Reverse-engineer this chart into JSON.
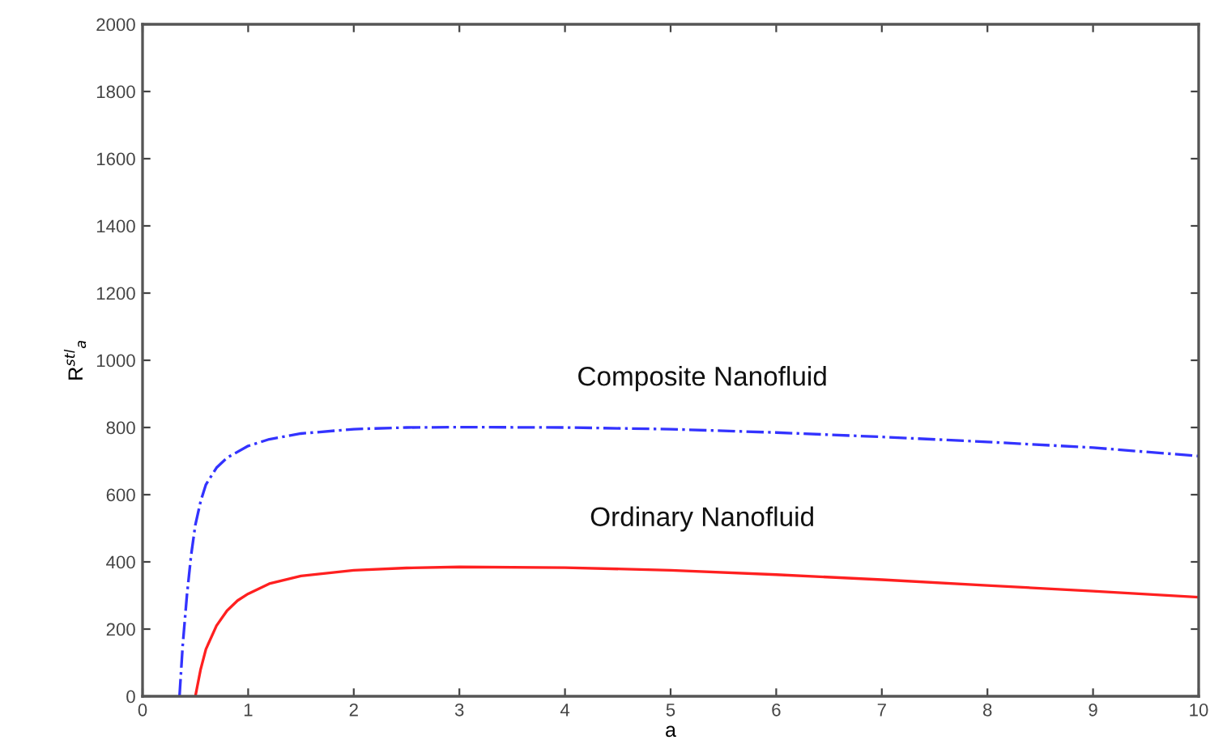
{
  "chart_data": {
    "type": "line",
    "xlabel": "a",
    "ylabel": "R$^{stl}$$_{a}$",
    "xlim": [
      0,
      10
    ],
    "ylim": [
      0,
      2000
    ],
    "xticks": [
      0,
      1,
      2,
      3,
      4,
      5,
      6,
      7,
      8,
      9,
      10
    ],
    "yticks": [
      0,
      200,
      400,
      600,
      800,
      1000,
      1200,
      1400,
      1600,
      1800,
      2000
    ],
    "grid": false,
    "legend": false,
    "series": [
      {
        "name": "Composite Nanofluid",
        "color": "#3333ff",
        "line_style": "dashdot",
        "x": [
          0.35,
          0.38,
          0.42,
          0.46,
          0.5,
          0.55,
          0.6,
          0.7,
          0.8,
          1,
          1.2,
          1.5,
          2,
          2.5,
          3,
          4,
          5,
          6,
          7,
          8,
          9,
          10
        ],
        "values": [
          0,
          150,
          300,
          420,
          510,
          580,
          630,
          680,
          710,
          745,
          765,
          782,
          795,
          800,
          801,
          800,
          795,
          785,
          772,
          757,
          740,
          715
        ]
      },
      {
        "name": "Ordinary Nanofluid",
        "color": "#ff2020",
        "line_style": "solid",
        "x": [
          0.5,
          0.55,
          0.6,
          0.7,
          0.8,
          0.9,
          1,
          1.2,
          1.5,
          2,
          2.5,
          3,
          4,
          5,
          6,
          7,
          8,
          9,
          10
        ],
        "values": [
          0,
          80,
          140,
          210,
          255,
          285,
          305,
          335,
          358,
          375,
          382,
          385,
          383,
          375,
          362,
          347,
          330,
          313,
          295
        ]
      }
    ]
  }
}
